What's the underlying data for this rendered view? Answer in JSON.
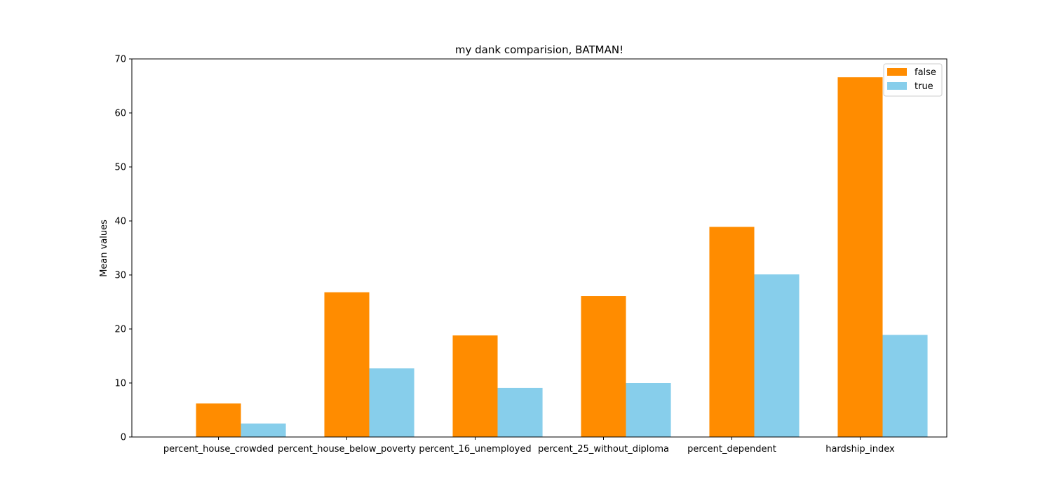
{
  "chart_data": {
    "type": "bar",
    "title": "my dank comparision, BATMAN!",
    "xlabel": "",
    "ylabel": "Mean values",
    "ylim": [
      0,
      70
    ],
    "yticks": [
      0,
      10,
      20,
      30,
      40,
      50,
      60,
      70
    ],
    "categories": [
      "percent_house_crowded",
      "percent_house_below_poverty",
      "percent_16_unemployed",
      "percent_25_without_diploma",
      "percent_dependent",
      "hardship_index"
    ],
    "series": [
      {
        "name": "false",
        "color": "#FF8C00",
        "values": [
          6.2,
          26.8,
          18.8,
          26.1,
          38.9,
          66.6
        ]
      },
      {
        "name": "true",
        "color": "#87CEEB",
        "values": [
          2.5,
          12.7,
          9.1,
          10.0,
          30.1,
          18.9
        ]
      }
    ],
    "legend": {
      "position": "top-right"
    },
    "grid": false
  }
}
